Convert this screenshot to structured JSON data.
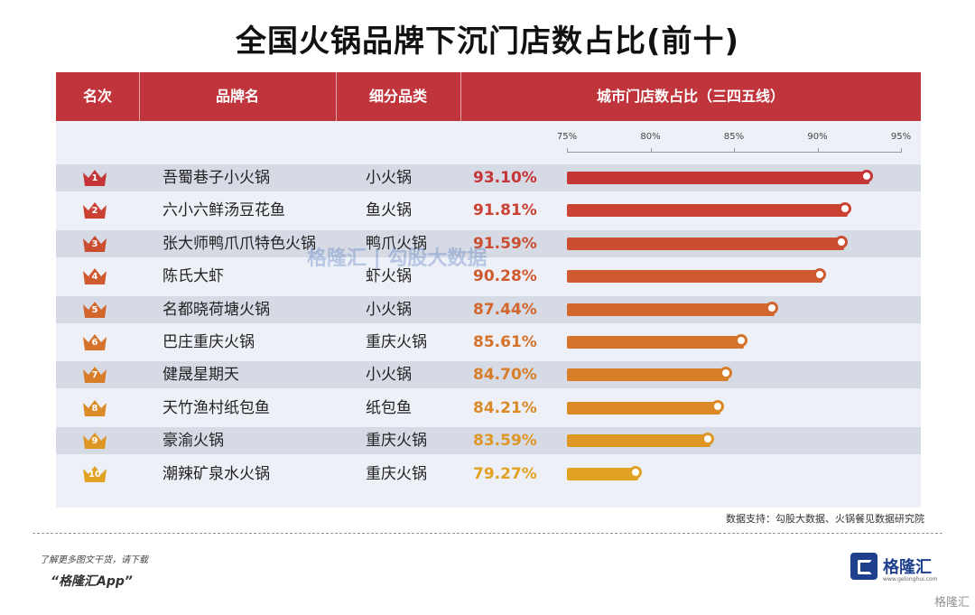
{
  "title": "全国火锅品牌下沉门店数占比(前十)",
  "headers": {
    "rank": "名次",
    "brand": "品牌名",
    "category": "细分品类",
    "share": "城市门店数占比（三四五线）"
  },
  "chart_data": {
    "type": "bar",
    "orientation": "horizontal",
    "x_ticks": [
      "75%",
      "80%",
      "85%",
      "90%",
      "95%"
    ],
    "xlim": [
      75,
      95
    ],
    "categories": [
      "吾蜀巷子小火锅",
      "六小六鲜汤豆花鱼",
      "张大师鸭爪爪特色火锅",
      "陈氏大虾",
      "名都晓荷塘火锅",
      "巴庄重庆火锅",
      "健晟星期天",
      "天竹渔村纸包鱼",
      "豪渝火锅",
      "潮辣矿泉水火锅"
    ],
    "values": [
      93.1,
      91.81,
      91.59,
      90.28,
      87.44,
      85.61,
      84.7,
      84.21,
      83.59,
      79.27
    ],
    "grid": false,
    "legend": "none"
  },
  "rows": [
    {
      "rank": "1",
      "brand": "吾蜀巷子小火锅",
      "category": "小火锅",
      "pct": "93.10%",
      "color": "#c63535"
    },
    {
      "rank": "2",
      "brand": "六小六鲜汤豆花鱼",
      "category": "鱼火锅",
      "pct": "91.81%",
      "color": "#c94233"
    },
    {
      "rank": "3",
      "brand": "张大师鸭爪爪特色火锅",
      "category": "鸭爪火锅",
      "pct": "91.59%",
      "color": "#cc4e31"
    },
    {
      "rank": "4",
      "brand": "陈氏大虾",
      "category": "虾火锅",
      "pct": "90.28%",
      "color": "#cf5a2f"
    },
    {
      "rank": "5",
      "brand": "名都晓荷塘火锅",
      "category": "小火锅",
      "pct": "87.44%",
      "color": "#d2662d"
    },
    {
      "rank": "6",
      "brand": "巴庄重庆火锅",
      "category": "重庆火锅",
      "pct": "85.61%",
      "color": "#d5722b"
    },
    {
      "rank": "7",
      "brand": "健晟星期天",
      "category": "小火锅",
      "pct": "84.70%",
      "color": "#d87e29"
    },
    {
      "rank": "8",
      "brand": "天竹渔村纸包鱼",
      "category": "纸包鱼",
      "pct": "84.21%",
      "color": "#db8a27"
    },
    {
      "rank": "9",
      "brand": "豪渝火锅",
      "category": "重庆火锅",
      "pct": "83.59%",
      "color": "#de9625"
    },
    {
      "rank": "10",
      "brand": "潮辣矿泉水火锅",
      "category": "重庆火锅",
      "pct": "79.27%",
      "color": "#e1a223"
    }
  ],
  "source": "数据支持：勾股大数据、火锅餐见数据研究院",
  "promo_line1": "了解更多图文干货，请下载",
  "promo_line2": "“格隆汇App”",
  "logo_text": "格隆汇",
  "logo_sub": "www.gelonghui.com",
  "watermark_center": "格隆汇 | 勾股大数据",
  "watermark_corner": "格隆汇"
}
